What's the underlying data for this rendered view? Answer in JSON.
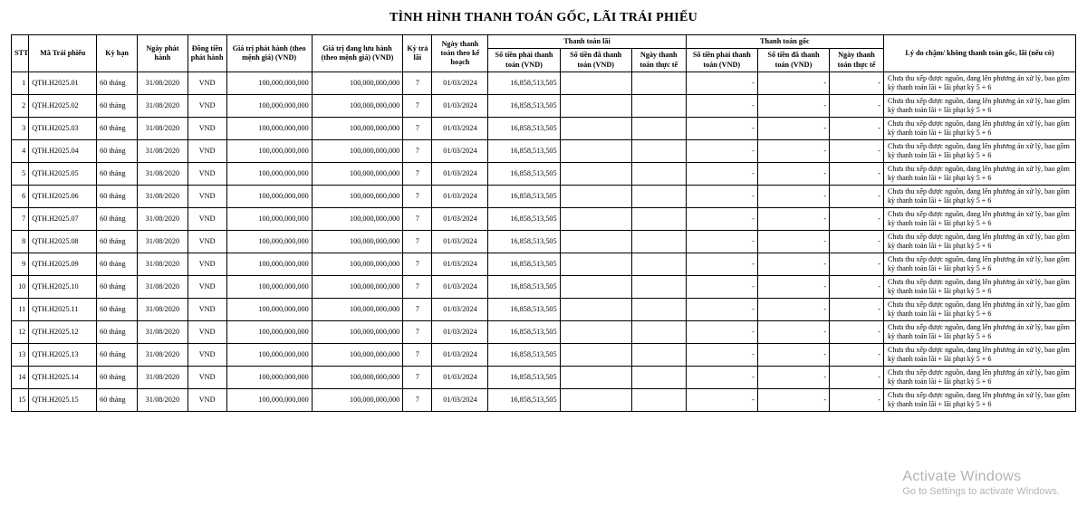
{
  "title": "TÌNH HÌNH THANH TOÁN GỐC, LÃI TRÁI PHIẾU",
  "headers": {
    "stt": "STT",
    "code": "Mã Trái phiếu",
    "term": "Kỳ hạn",
    "issueDate": "Ngày phát hành",
    "currency": "Đồng tiền phát hành",
    "faceValue": "Giá trị phát hành (theo mệnh giá) (VND)",
    "outstanding": "Giá trị đang lưu hành (theo mệnh giá) (VND)",
    "period": "Kỳ trả lãi",
    "planDate": "Ngày thanh toán theo kế hoạch",
    "interestGroup": "Thanh toán lãi",
    "principalGroup": "Thanh toán gốc",
    "amountDue": "Số tiền phải thanh toán (VND)",
    "amountPaid": "Số tiền đã thanh toán (VND)",
    "actualDate": "Ngày thanh toán thực tế",
    "reason": "Lý do chậm/ không thanh toán gốc, lãi (nếu có)"
  },
  "colWidths": {
    "stt": 18,
    "code": 70,
    "term": 42,
    "issueDate": 52,
    "currency": 40,
    "faceValue": 88,
    "outstanding": 94,
    "period": 30,
    "planDate": 58,
    "intDue": 74,
    "intPaid": 74,
    "intDate": 56,
    "prinDue": 74,
    "prinPaid": 74,
    "prinDate": 56,
    "reason": 198
  },
  "common": {
    "term": "60 tháng",
    "issueDate": "31/08/2020",
    "currency": "VND",
    "faceValue": "100,000,000,000",
    "outstanding": "100,000,000,000",
    "period": "7",
    "planDate": "01/03/2024",
    "intDue": "16,858,513,505",
    "intPaid": "",
    "intDate": "",
    "prinDue": "-",
    "prinPaid": "-",
    "prinDate": "-",
    "reason": "Chưa thu xếp được nguồn, đang lên phương án xử lý, bao gồm kỳ thanh toán lãi + lãi phạt kỳ 5 + 6"
  },
  "rows": [
    {
      "stt": "1",
      "code": "QTH.H2025.01"
    },
    {
      "stt": "2",
      "code": "QTH.H2025.02"
    },
    {
      "stt": "3",
      "code": "QTH.H2025.03"
    },
    {
      "stt": "4",
      "code": "QTH.H2025.04"
    },
    {
      "stt": "5",
      "code": "QTH.H2025.05"
    },
    {
      "stt": "6",
      "code": "QTH.H2025.06"
    },
    {
      "stt": "7",
      "code": "QTH.H2025.07"
    },
    {
      "stt": "8",
      "code": "QTH.H2025.08"
    },
    {
      "stt": "9",
      "code": "QTH.H2025.09"
    },
    {
      "stt": "10",
      "code": "QTH.H2025.10"
    },
    {
      "stt": "11",
      "code": "QTH.H2025.11"
    },
    {
      "stt": "12",
      "code": "QTH.H2025.12"
    },
    {
      "stt": "13",
      "code": "QTH.H2025.13"
    },
    {
      "stt": "14",
      "code": "QTH.H2025.14"
    },
    {
      "stt": "15",
      "code": "QTH.H2025.15"
    }
  ],
  "watermark": {
    "line1": "Activate Windows",
    "line2": "Go to Settings to activate Windows."
  }
}
